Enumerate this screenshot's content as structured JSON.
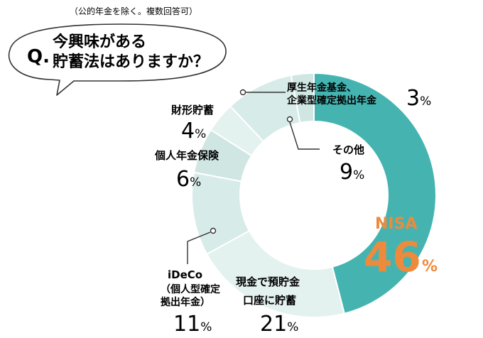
{
  "note": "（公的年金を除く。複数回答可）",
  "question": {
    "prefix": "Q.",
    "line1": "今興味がある",
    "line2": "貯蓄法はありますか？"
  },
  "chart_data": {
    "type": "pie",
    "donut": true,
    "start": "12 o'clock, clockwise",
    "unit": "%",
    "slices": [
      {
        "label": "NISA",
        "value": 46,
        "color": "#45b4b1"
      },
      {
        "label": "現金で預貯金口座に貯蓄",
        "label_lines": [
          "現金で預貯金",
          "口座に貯蓄"
        ],
        "value": 21,
        "color": "#e3f1ef"
      },
      {
        "label": "iDeCo（個人型確定拠出年金）",
        "label_lines": [
          "iDeCo",
          "（個人型確定",
          "拠出年金）"
        ],
        "value": 11,
        "color": "#d7ebe8"
      },
      {
        "label": "個人年金保険",
        "label_lines": [
          "個人年金保険"
        ],
        "value": 6,
        "color": "#cfe6e2"
      },
      {
        "label": "財形貯蓄",
        "label_lines": [
          "財形貯蓄"
        ],
        "value": 4,
        "color": "#e3f1ef"
      },
      {
        "label": "その他",
        "label_lines": [
          "その他"
        ],
        "value": 9,
        "color": "#d7ebe8"
      },
      {
        "label": "厚生年金基金、企業型確定拠出年金",
        "label_lines": [
          "厚生年金基金、",
          "企業型確定拠出年金"
        ],
        "value": 3,
        "color": "#cfe6e2"
      }
    ],
    "highlight_color": "#ee8a3c"
  }
}
